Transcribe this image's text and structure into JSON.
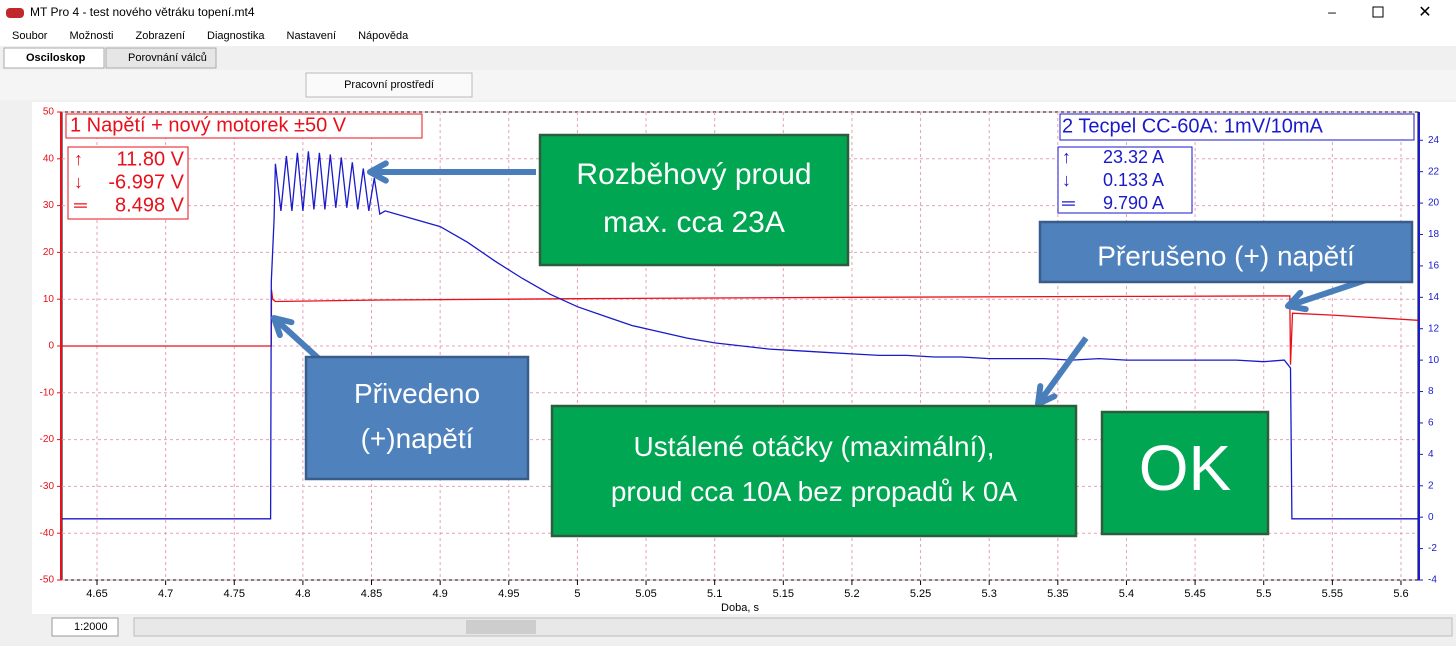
{
  "window": {
    "title": "MT Pro 4 - test nového větráku topení.mt4"
  },
  "menu": [
    "Soubor",
    "Možnosti",
    "Zobrazení",
    "Diagnostika",
    "Nastavení",
    "Nápověda"
  ],
  "tabs": [
    "Osciloskop",
    "Porovnání válců"
  ],
  "toolbar": {
    "workspace": "Pracovní prostředí"
  },
  "statusbar": {
    "zoom": "1:2000"
  },
  "chart_data": {
    "type": "line",
    "xlabel": "Doba, s",
    "xlim": [
      4.6245,
      5.6124
    ],
    "xticks": [
      4.65,
      4.7,
      4.75,
      4.8,
      4.85,
      4.9,
      4.95,
      5,
      5.05,
      5.1,
      5.15,
      5.2,
      5.25,
      5.3,
      5.35,
      5.4,
      5.45,
      5.5,
      5.55,
      5.6
    ],
    "ylim": [
      -50,
      50
    ],
    "yticks": [
      -50,
      -40,
      -30,
      -20,
      -10,
      0,
      10,
      20,
      30,
      40,
      50
    ],
    "y2lim": [
      -4,
      25.8
    ],
    "y2ticks": [
      -4,
      -2,
      0,
      2,
      4,
      6,
      8,
      10,
      12,
      14,
      16,
      18,
      20,
      22,
      24
    ],
    "grid": true,
    "series": [
      {
        "name": "1 Napětí + nový motorek  ±50 V",
        "color": "#e8101a",
        "axis": "y",
        "x": [
          4.6245,
          4.777,
          4.7771,
          4.778,
          4.78,
          4.85,
          5.0,
          5.2,
          5.4,
          5.519,
          5.5195,
          5.521,
          5.55,
          5.6124
        ],
        "values": [
          0,
          0,
          12,
          10,
          9.5,
          9.8,
          10.1,
          10.4,
          10.6,
          10.7,
          -4,
          7,
          6.6,
          5.5
        ],
        "readouts": [
          "11.80 V",
          "-6.997 V",
          "8.498 V"
        ]
      },
      {
        "name": "2 Tecpel CC-60A: 1mV/10mA",
        "color": "#1a1acc",
        "axis": "y2",
        "x": [
          4.6245,
          4.7765,
          4.777,
          4.779,
          4.78,
          4.784,
          4.788,
          4.792,
          4.796,
          4.8,
          4.804,
          4.808,
          4.812,
          4.816,
          4.82,
          4.824,
          4.828,
          4.832,
          4.836,
          4.84,
          4.844,
          4.848,
          4.852,
          4.856,
          4.86,
          4.88,
          4.9,
          4.92,
          4.94,
          4.96,
          4.98,
          5.0,
          5.02,
          5.04,
          5.06,
          5.08,
          5.1,
          5.12,
          5.14,
          5.16,
          5.18,
          5.2,
          5.22,
          5.24,
          5.26,
          5.28,
          5.3,
          5.32,
          5.34,
          5.36,
          5.38,
          5.4,
          5.42,
          5.44,
          5.46,
          5.48,
          5.5,
          5.515,
          5.5195,
          5.5205,
          5.6124
        ],
        "values": [
          -0.1,
          -0.1,
          15,
          19,
          22.5,
          19.5,
          23,
          19.5,
          23.2,
          19.5,
          23.3,
          19.6,
          23.2,
          19.6,
          23.1,
          19.7,
          22.9,
          19.7,
          22.6,
          19.6,
          22.2,
          19.5,
          21.6,
          19.3,
          19.5,
          19,
          18.5,
          17.5,
          16.3,
          15.2,
          14.2,
          13.4,
          12.8,
          12.2,
          11.8,
          11.4,
          11.1,
          10.9,
          10.7,
          10.6,
          10.5,
          10.4,
          10.3,
          10.3,
          10.2,
          10.2,
          10.1,
          10.1,
          10.1,
          10,
          10.1,
          10,
          10,
          10,
          10,
          10,
          9.9,
          10,
          9.5,
          -0.1,
          -0.1
        ],
        "readouts": [
          "23.32 A",
          "0.133 A",
          "9.790 A"
        ]
      }
    ],
    "annotations": [
      {
        "lines": [
          "Rozběhový proud",
          "max. cca 23A"
        ],
        "style": "green"
      },
      {
        "lines": [
          "Přerušeno (+) napětí"
        ],
        "style": "blue"
      },
      {
        "lines": [
          "Přivedeno",
          "(+)napětí"
        ],
        "style": "blue"
      },
      {
        "lines": [
          "Ustálené otáčky (maximální),",
          "proud cca 10A bez propadů k 0A"
        ],
        "style": "green"
      },
      {
        "lines": [
          "OK"
        ],
        "style": "green"
      }
    ]
  }
}
